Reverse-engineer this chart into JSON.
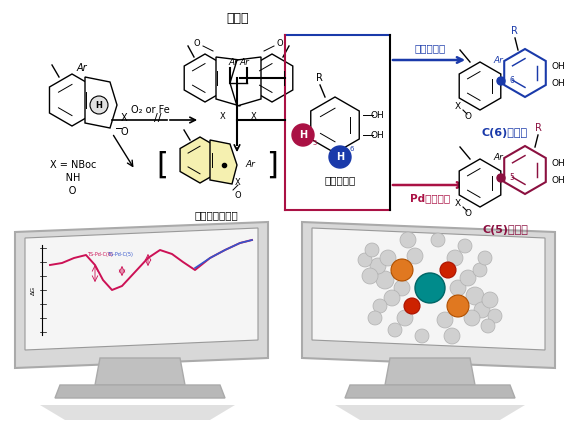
{
  "bg_color": "#ffffff",
  "catalyst_free_label": "触媒フリー",
  "catalyst_free_color": "#1a3aaa",
  "pd_catalyst_label": "Pd錯体触媒",
  "pd_catalyst_color": "#aa1144",
  "catechol_label": "カテコール",
  "radical_label": "持続性ラジカル",
  "dimer_label": "二量体",
  "x_lines": [
    "X = NBoc",
    "NH",
    "O"
  ],
  "c6_label": "C(6)生成物",
  "c6_color": "#1a3aaa",
  "c5_label": "C(5)生成物",
  "c5_color": "#8b1040",
  "h5_color": "#aa1144",
  "h6_color": "#1a3aaa",
  "o2_fe": "O₂ or Fe"
}
